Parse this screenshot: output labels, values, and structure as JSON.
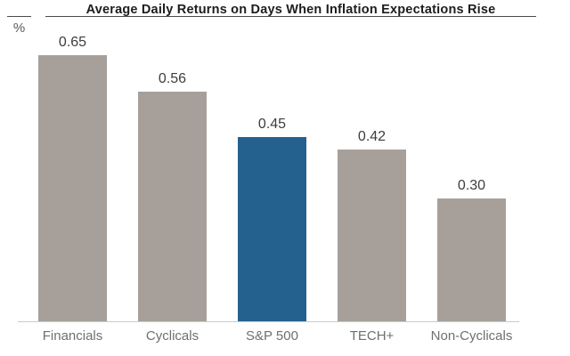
{
  "chart_data": {
    "type": "bar",
    "title": "Average Daily Returns on Days When Inflation Expectations Rise",
    "unit_label": "%",
    "categories": [
      "Financials",
      "Cyclicals",
      "S&P 500",
      "TECH+",
      "Non-Cyclicals"
    ],
    "values": [
      0.65,
      0.56,
      0.45,
      0.42,
      0.3
    ],
    "value_labels": [
      "0.65",
      "0.56",
      "0.45",
      "0.42",
      "0.30"
    ],
    "ylabel": "%",
    "xlabel": "",
    "ylim": [
      0,
      0.72
    ],
    "grid": "off",
    "legend": "none",
    "highlighted_category": "S&P 500",
    "highlight_index": 2,
    "colors": {
      "bar": "#a7a09a",
      "highlight": "#25618e",
      "title_text": "#1d1d1d",
      "value_text": "#3d3d3d",
      "category_text": "#6f6f6f",
      "baseline": "#cbcbcb",
      "rule": "#4b4b4b",
      "background": "#ffffff"
    }
  }
}
